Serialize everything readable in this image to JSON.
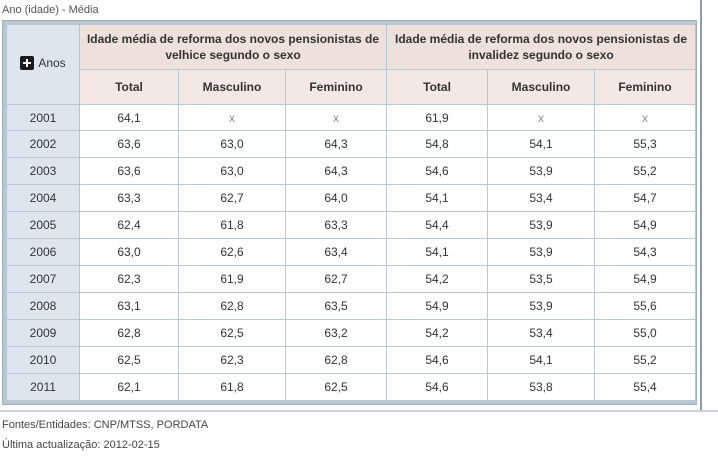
{
  "caption": "Ano (idade) - Média",
  "table": {
    "row_header_label": "Anos",
    "groups": [
      "Idade média de reforma dos novos pensionistas de velhice segundo o sexo",
      "Idade média de reforma dos novos pensionistas de invalidez segundo o sexo"
    ],
    "subheaders": [
      "Total",
      "Masculino",
      "Feminino",
      "Total",
      "Masculino",
      "Feminino"
    ],
    "rows": [
      {
        "year": "2001",
        "values": [
          "64,1",
          "x",
          "x",
          "61,9",
          "x",
          "x"
        ]
      },
      {
        "year": "2002",
        "values": [
          "63,6",
          "63,0",
          "64,3",
          "54,8",
          "54,1",
          "55,3"
        ]
      },
      {
        "year": "2003",
        "values": [
          "63,6",
          "63,0",
          "64,3",
          "54,6",
          "53,9",
          "55,2"
        ]
      },
      {
        "year": "2004",
        "values": [
          "63,3",
          "62,7",
          "64,0",
          "54,1",
          "53,4",
          "54,7"
        ]
      },
      {
        "year": "2005",
        "values": [
          "62,4",
          "61,8",
          "63,3",
          "54,4",
          "53,9",
          "54,9"
        ]
      },
      {
        "year": "2006",
        "values": [
          "63,0",
          "62,6",
          "63,4",
          "54,1",
          "53,9",
          "54,3"
        ]
      },
      {
        "year": "2007",
        "values": [
          "62,3",
          "61,9",
          "62,7",
          "54,2",
          "53,5",
          "54,9"
        ]
      },
      {
        "year": "2008",
        "values": [
          "63,1",
          "62,8",
          "63,5",
          "54,9",
          "53,9",
          "55,6"
        ]
      },
      {
        "year": "2009",
        "values": [
          "62,8",
          "62,5",
          "63,2",
          "54,2",
          "53,4",
          "55,0"
        ]
      },
      {
        "year": "2010",
        "values": [
          "62,5",
          "62,3",
          "62,8",
          "54,6",
          "54,1",
          "55,2"
        ]
      },
      {
        "year": "2011",
        "values": [
          "62,1",
          "61,8",
          "62,5",
          "54,6",
          "53,8",
          "55,4"
        ]
      }
    ]
  },
  "footer": {
    "sources": "Fontes/Entidades: CNP/MTSS, PORDATA",
    "last_update": "Última actualização: 2012-02-15"
  }
}
